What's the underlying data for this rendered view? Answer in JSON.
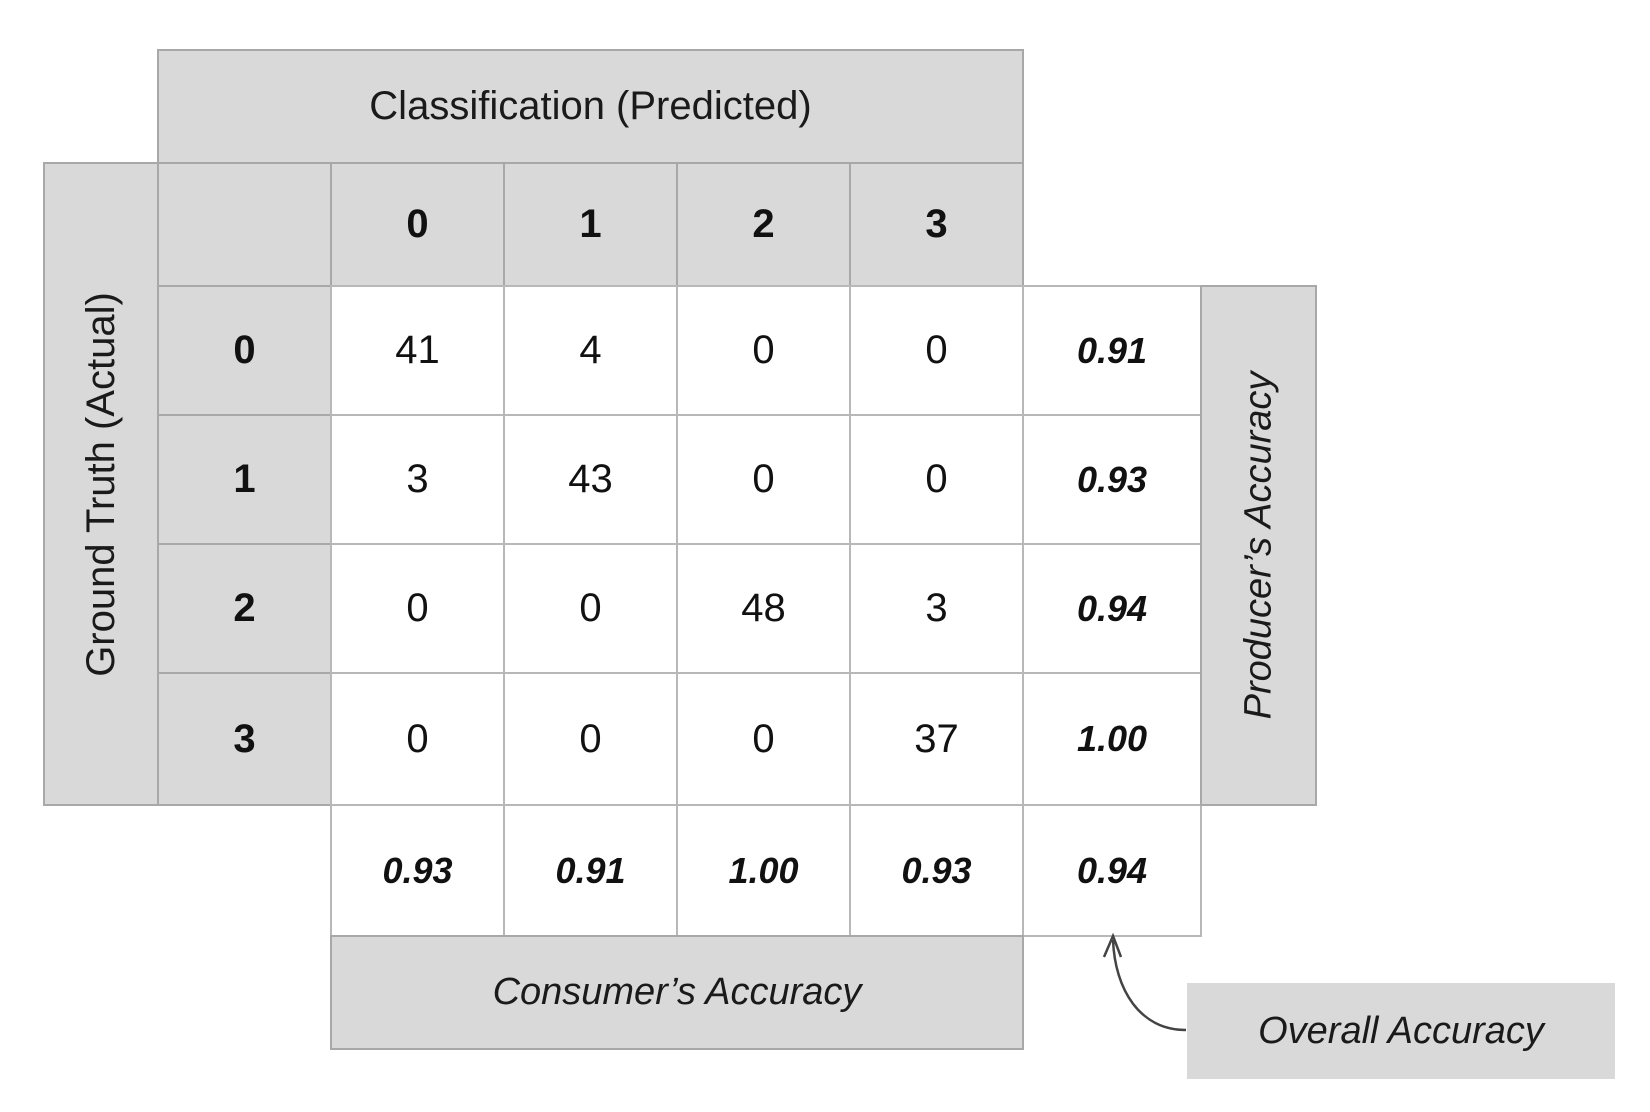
{
  "predicted_title": "Classification (Predicted)",
  "actual_title": "Ground Truth (Actual)",
  "producers_label": "Producer’s Accuracy",
  "consumers_label": "Consumer’s Accuracy",
  "overall_label": "Overall Accuracy",
  "classes": [
    "0",
    "1",
    "2",
    "3"
  ],
  "matrix": [
    [
      "41",
      "4",
      "0",
      "0"
    ],
    [
      "3",
      "43",
      "0",
      "0"
    ],
    [
      "0",
      "0",
      "48",
      "3"
    ],
    [
      "0",
      "0",
      "0",
      "37"
    ]
  ],
  "producers_accuracy": [
    "0.91",
    "0.93",
    "0.94",
    "1.00"
  ],
  "consumers_accuracy": [
    "0.93",
    "0.91",
    "1.00",
    "0.93"
  ],
  "overall_accuracy": "0.94",
  "colors": {
    "header_fill": "#d9d9d9",
    "cell_fill": "#ffffff",
    "border": "#a8a8a8"
  }
}
